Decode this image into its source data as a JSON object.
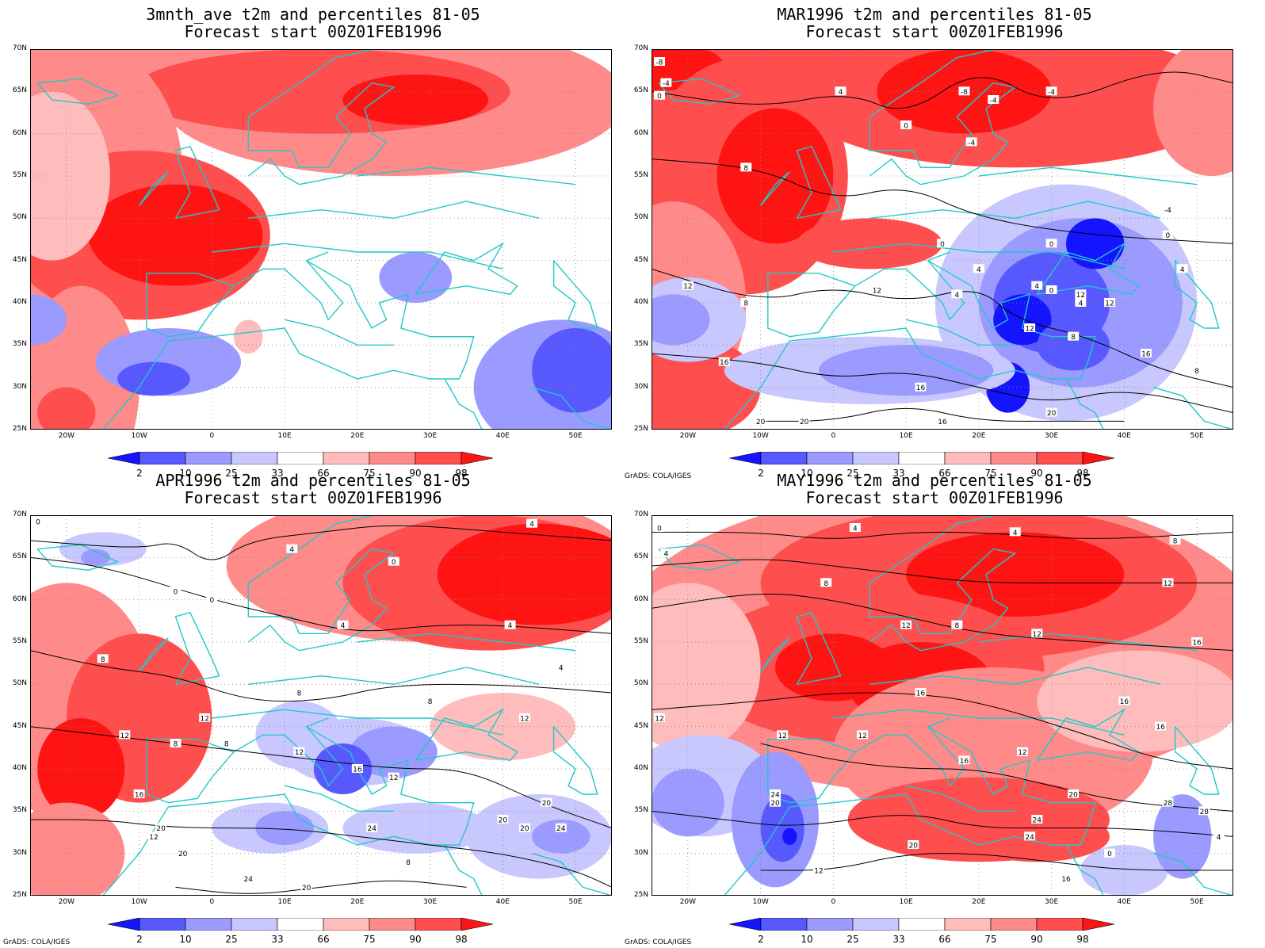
{
  "figure": {
    "legend": {
      "values": [
        "2",
        "10",
        "25",
        "33",
        "66",
        "75",
        "90",
        "98"
      ],
      "colors": [
        "#1414ff",
        "#5858ff",
        "#9a9aff",
        "#c8c8ff",
        "#ffffff",
        "#ffbcbc",
        "#ff8a8a",
        "#ff4e4e",
        "#ff1414"
      ]
    },
    "axes": {
      "lat_labels": [
        "70N",
        "65N",
        "60N",
        "55N",
        "50N",
        "45N",
        "40N",
        "35N",
        "30N",
        "25N"
      ],
      "lon_labels": [
        "20W",
        "10W",
        "0",
        "10E",
        "20E",
        "30E",
        "40E",
        "50E"
      ]
    },
    "credit": "GrADS: COLA/IGES",
    "panels": [
      {
        "title_line1": "3mnth_ave t2m and percentiles 81-05",
        "title_line2": "Forecast start 00Z01FEB1996",
        "credit": "",
        "contour_labels": []
      },
      {
        "title_line1": "MAR1996 t2m and percentiles 81-05",
        "title_line2": "Forecast start 00Z01FEB1996",
        "credit": "GrADS: COLA/IGES",
        "contour_labels": [
          "-8",
          "-4",
          "0",
          "4",
          "-8",
          "-4",
          "-4",
          "0",
          "-4",
          "8",
          "0",
          "0",
          "4",
          "4",
          "12",
          "8",
          "12",
          "4",
          "0",
          "4",
          "12",
          "8",
          "12",
          "12",
          "16",
          "16",
          "16",
          "20",
          "20",
          "16",
          "20",
          "8",
          "-4",
          "0",
          "4"
        ]
      },
      {
        "title_line1": "APR1996 t2m and percentiles 81-05",
        "title_line2": "Forecast start 00Z01FEB1996",
        "credit": "GrADS: COLA/IGES",
        "contour_labels": [
          "0",
          "4",
          "4",
          "0",
          "0",
          "0",
          "4",
          "4",
          "8",
          "8",
          "12",
          "8",
          "4",
          "12",
          "8",
          "8",
          "12",
          "12",
          "16",
          "12",
          "16",
          "20",
          "12",
          "24",
          "20",
          "24",
          "20",
          "20",
          "24",
          "20",
          "8",
          "20"
        ]
      },
      {
        "title_line1": "MAY1996 t2m and percentiles 81-05",
        "title_line2": "Forecast start 00Z01FEB1996",
        "credit": "GrADS: COLA/IGES",
        "contour_labels": [
          "0",
          "4",
          "4",
          "4",
          "8",
          "8",
          "8",
          "12",
          "12",
          "12",
          "12",
          "12",
          "12",
          "16",
          "16",
          "16",
          "12",
          "16",
          "16",
          "24",
          "20",
          "20",
          "24",
          "28",
          "28",
          "20",
          "24",
          "12",
          "16",
          "0",
          "4"
        ]
      }
    ]
  }
}
